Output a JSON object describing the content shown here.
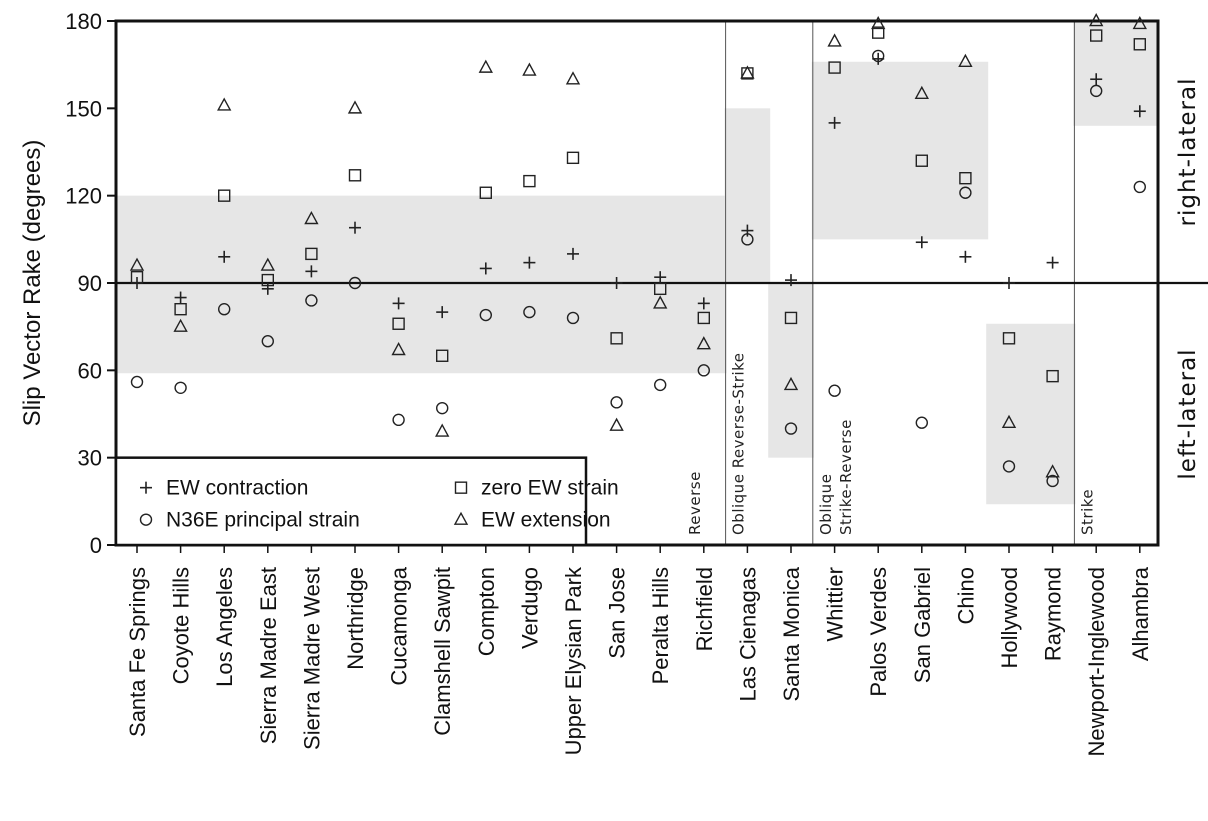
{
  "chart_data": {
    "type": "scatter",
    "ylabel": "Slip Vector Rake (degrees)",
    "ylim": [
      0,
      180
    ],
    "yticks": [
      "0",
      "30",
      "60",
      "90",
      "120",
      "150",
      "180"
    ],
    "categories": [
      "Santa Fe Springs",
      "Coyote Hills",
      "Los Angeles",
      "Sierra Madre East",
      "Sierra Madre West",
      "Northridge",
      "Cucamonga",
      "Clamshell Sawpit",
      "Compton",
      "Verdugo",
      "Upper Elysian Park",
      "San Jose",
      "Peralta Hills",
      "Richfield",
      "Las Cienagas",
      "Santa Monica",
      "Whittier",
      "Palos Verdes",
      "San Gabriel",
      "Chino",
      "Hollywood",
      "Raymond",
      "Newport-Inglewood",
      "Alhambra"
    ],
    "series": [
      {
        "name": "EW contraction",
        "marker": "plus",
        "values": [
          90,
          85,
          99,
          88,
          94,
          109,
          83,
          80,
          95,
          97,
          100,
          90,
          92,
          83,
          108,
          91,
          145,
          167,
          104,
          99,
          90,
          97,
          160,
          149
        ]
      },
      {
        "name": "N36E principal strain",
        "marker": "circle",
        "values": [
          56,
          54,
          81,
          70,
          84,
          90,
          43,
          47,
          79,
          80,
          78,
          49,
          55,
          60,
          105,
          40,
          53,
          168,
          42,
          121,
          27,
          22,
          156,
          123
        ]
      },
      {
        "name": "zero EW strain",
        "marker": "square",
        "values": [
          92,
          81,
          120,
          91,
          100,
          127,
          76,
          65,
          121,
          125,
          133,
          71,
          88,
          78,
          162,
          78,
          164,
          176,
          132,
          126,
          71,
          58,
          175,
          172
        ]
      },
      {
        "name": "EW extension",
        "marker": "triangle",
        "values": [
          96,
          75,
          151,
          96,
          112,
          150,
          67,
          39,
          164,
          163,
          160,
          41,
          83,
          69,
          162,
          55,
          173,
          179,
          155,
          166,
          42,
          25,
          180,
          179
        ]
      }
    ],
    "bands": [
      {
        "from": 0,
        "to": 13,
        "ymin": 59,
        "ymax": 120
      },
      {
        "from": 14,
        "to": 14,
        "ymin": 90,
        "ymax": 150
      },
      {
        "from": 15,
        "to": 15,
        "ymin": 30,
        "ymax": 90
      },
      {
        "from": 16,
        "to": 19,
        "ymin": 105,
        "ymax": 166
      },
      {
        "from": 20,
        "to": 21,
        "ymin": 14,
        "ymax": 76
      },
      {
        "from": 22,
        "to": 23,
        "ymin": 144,
        "ymax": 180
      }
    ],
    "reference_line": 90,
    "region_labels": [
      {
        "lines": [
          "Reverse"
        ],
        "anchor_category": 13
      },
      {
        "lines": [
          "Oblique Reverse-Strike"
        ],
        "anchor_category": 14
      },
      {
        "lines": [
          "Oblique",
          "Strike-Reverse"
        ],
        "anchor_category": 16
      },
      {
        "lines": [
          "Strike"
        ],
        "anchor_category": 22
      }
    ],
    "side_labels": {
      "upper": "right-lateral",
      "lower": "left-lateral"
    },
    "legend": {
      "placement": "bottom-left",
      "items": [
        {
          "marker": "plus",
          "label": "EW contraction"
        },
        {
          "marker": "square",
          "label": "zero EW strain"
        },
        {
          "marker": "circle",
          "label": "N36E principal strain"
        },
        {
          "marker": "triangle",
          "label": "EW extension"
        }
      ]
    }
  }
}
